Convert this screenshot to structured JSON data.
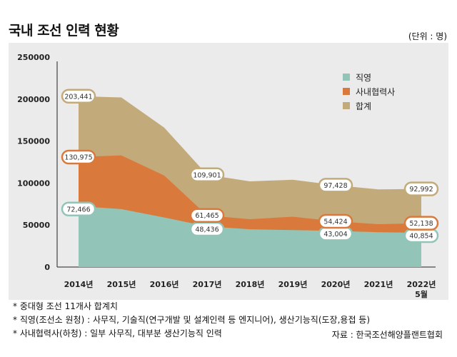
{
  "header": {
    "title": "국내 조선 인력 현황",
    "unit": "(단위 : 명)"
  },
  "colors": {
    "direct": "#93c4b8",
    "subcontract": "#d97a3c",
    "total": "#c3aa7b",
    "panel": "#ebebeb"
  },
  "chart_data": {
    "type": "area",
    "categories": [
      "2014년",
      "2015년",
      "2016년",
      "2017년",
      "2018년",
      "2019년",
      "2020년",
      "2021년",
      "2022년 5월"
    ],
    "ylim": [
      0,
      250000
    ],
    "yticks": [
      "0",
      "50000",
      "100000",
      "150000",
      "200000",
      "250000"
    ],
    "legend_position": "top-right",
    "series": [
      {
        "name": "직영",
        "values": [
          72466,
          69000,
          59000,
          48436,
          45000,
          44000,
          43004,
          41500,
          40854
        ],
        "labels": [
          "72,466",
          null,
          null,
          "48,436",
          null,
          null,
          "43,004",
          null,
          "40,854"
        ]
      },
      {
        "name": "사내협력사",
        "values": [
          130975,
          133000,
          109000,
          61465,
          57000,
          60000,
          54424,
          51000,
          52138
        ],
        "labels": [
          "130,975",
          null,
          null,
          "61,465",
          null,
          null,
          "54,424",
          null,
          "52,138"
        ]
      },
      {
        "name": "합계",
        "values": [
          203441,
          202000,
          166000,
          109901,
          102000,
          104000,
          97428,
          92500,
          92992
        ],
        "labels": [
          "203,441",
          null,
          null,
          "109,901",
          null,
          null,
          "97,428",
          null,
          "92,992"
        ]
      }
    ]
  },
  "footnotes": [
    "* 중대형 조선 11개사 합계치",
    "* 직영(조선소 원청) : 사무직, 기술직(연구개발 및 설계인력 등 엔지니어), 생산기능직(도장,용접 등)",
    "* 사내협력사(하청) : 일부 사무직, 대부분 생산기능직 인력"
  ],
  "source": "자료 : 한국조선해양플랜트협회"
}
